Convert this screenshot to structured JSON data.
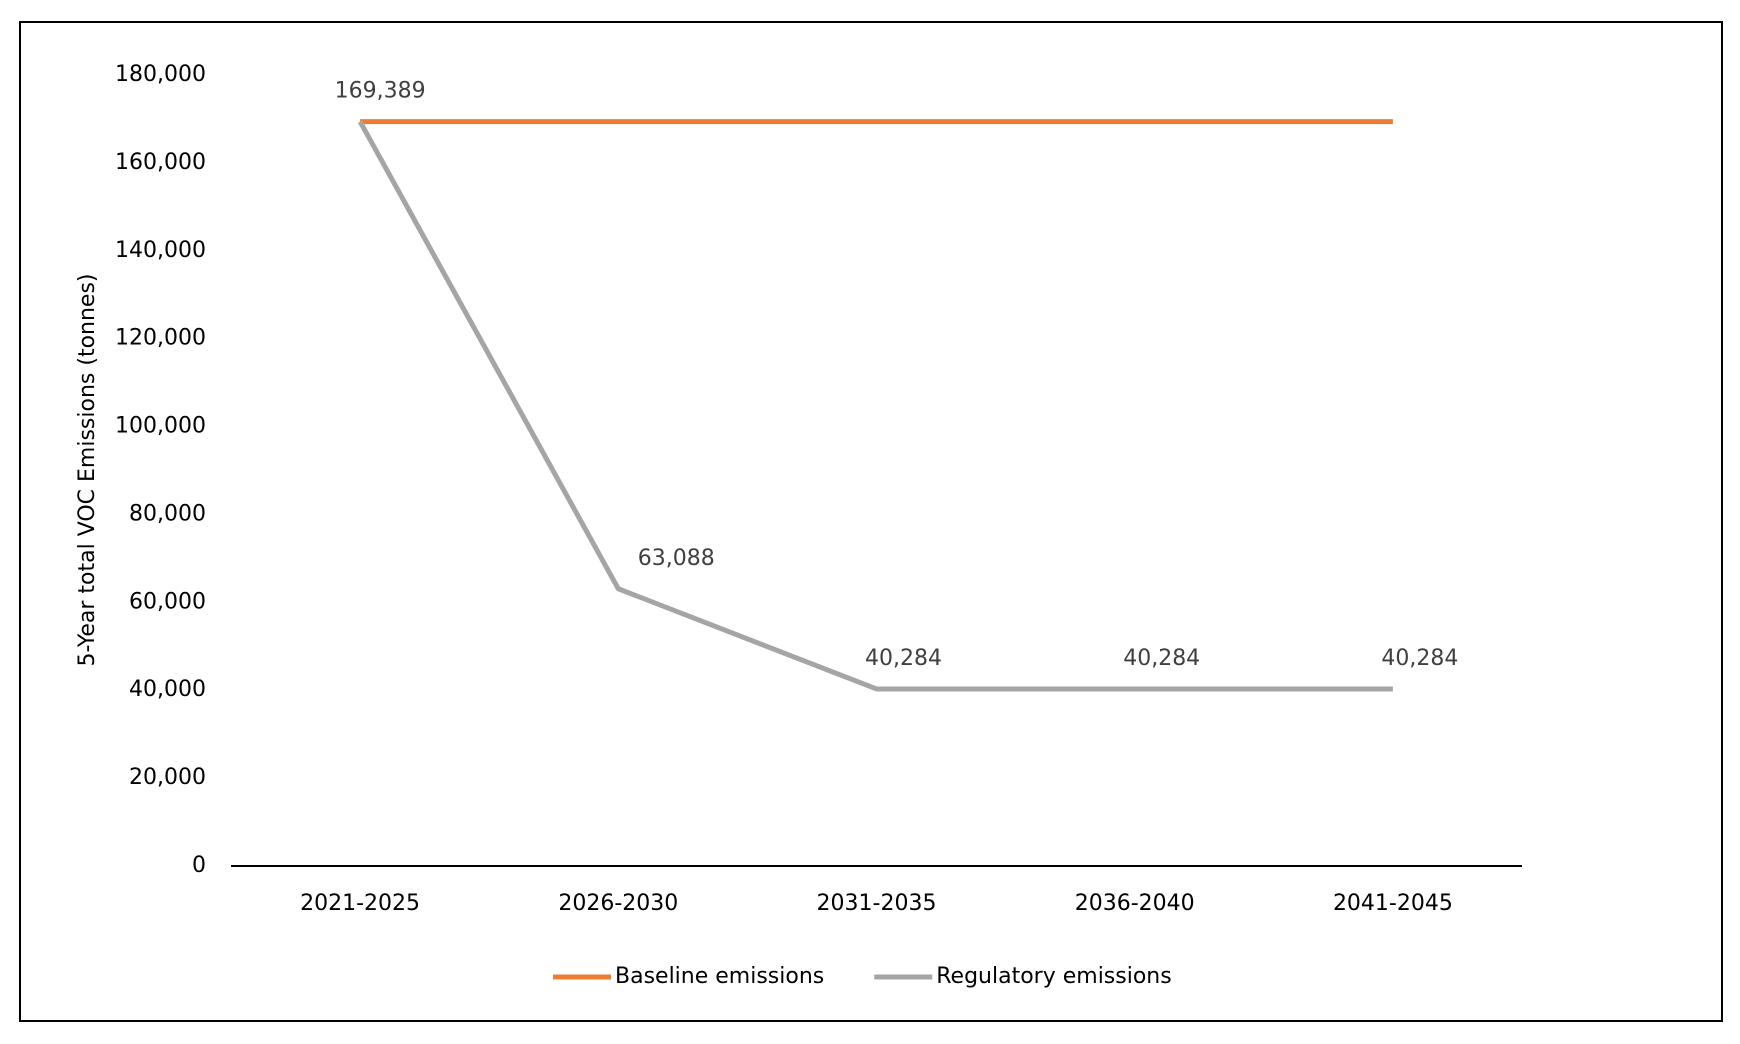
{
  "chart_data": {
    "type": "line",
    "y_label": "5-Year total VOC Emissions (tonnes)",
    "categories": [
      "2021-2025",
      "2026-2030",
      "2031-2035",
      "2036-2040",
      "2041-2045"
    ],
    "series": [
      {
        "name": "Baseline emissions",
        "color": "#ed7d31",
        "values": [
          169389,
          169389,
          169389,
          169389,
          169389
        ]
      },
      {
        "name": "Regulatory emissions",
        "color": "#a5a5a5",
        "values": [
          169389,
          63088,
          40284,
          40284,
          40284
        ],
        "value_labels": [
          "169,389",
          "63,088",
          "40,284",
          "40,284",
          "40,284"
        ]
      }
    ],
    "ylim": [
      0,
      180000
    ],
    "yticks": [
      0,
      {
        "value": 20000,
        "label": "20,000"
      },
      {
        "value": 40000,
        "label": "40,000"
      },
      {
        "value": 60000,
        "label": "60,000"
      },
      {
        "value": 80000,
        "label": "80,000"
      },
      {
        "value": 100000,
        "label": "100,000"
      },
      {
        "value": 120000,
        "label": "120,000"
      },
      {
        "value": 140000,
        "label": "140,000"
      },
      {
        "value": 160000,
        "label": "160,000"
      },
      {
        "value": 180000,
        "label": "180,000"
      }
    ],
    "grid": false,
    "legend": "bottom"
  }
}
